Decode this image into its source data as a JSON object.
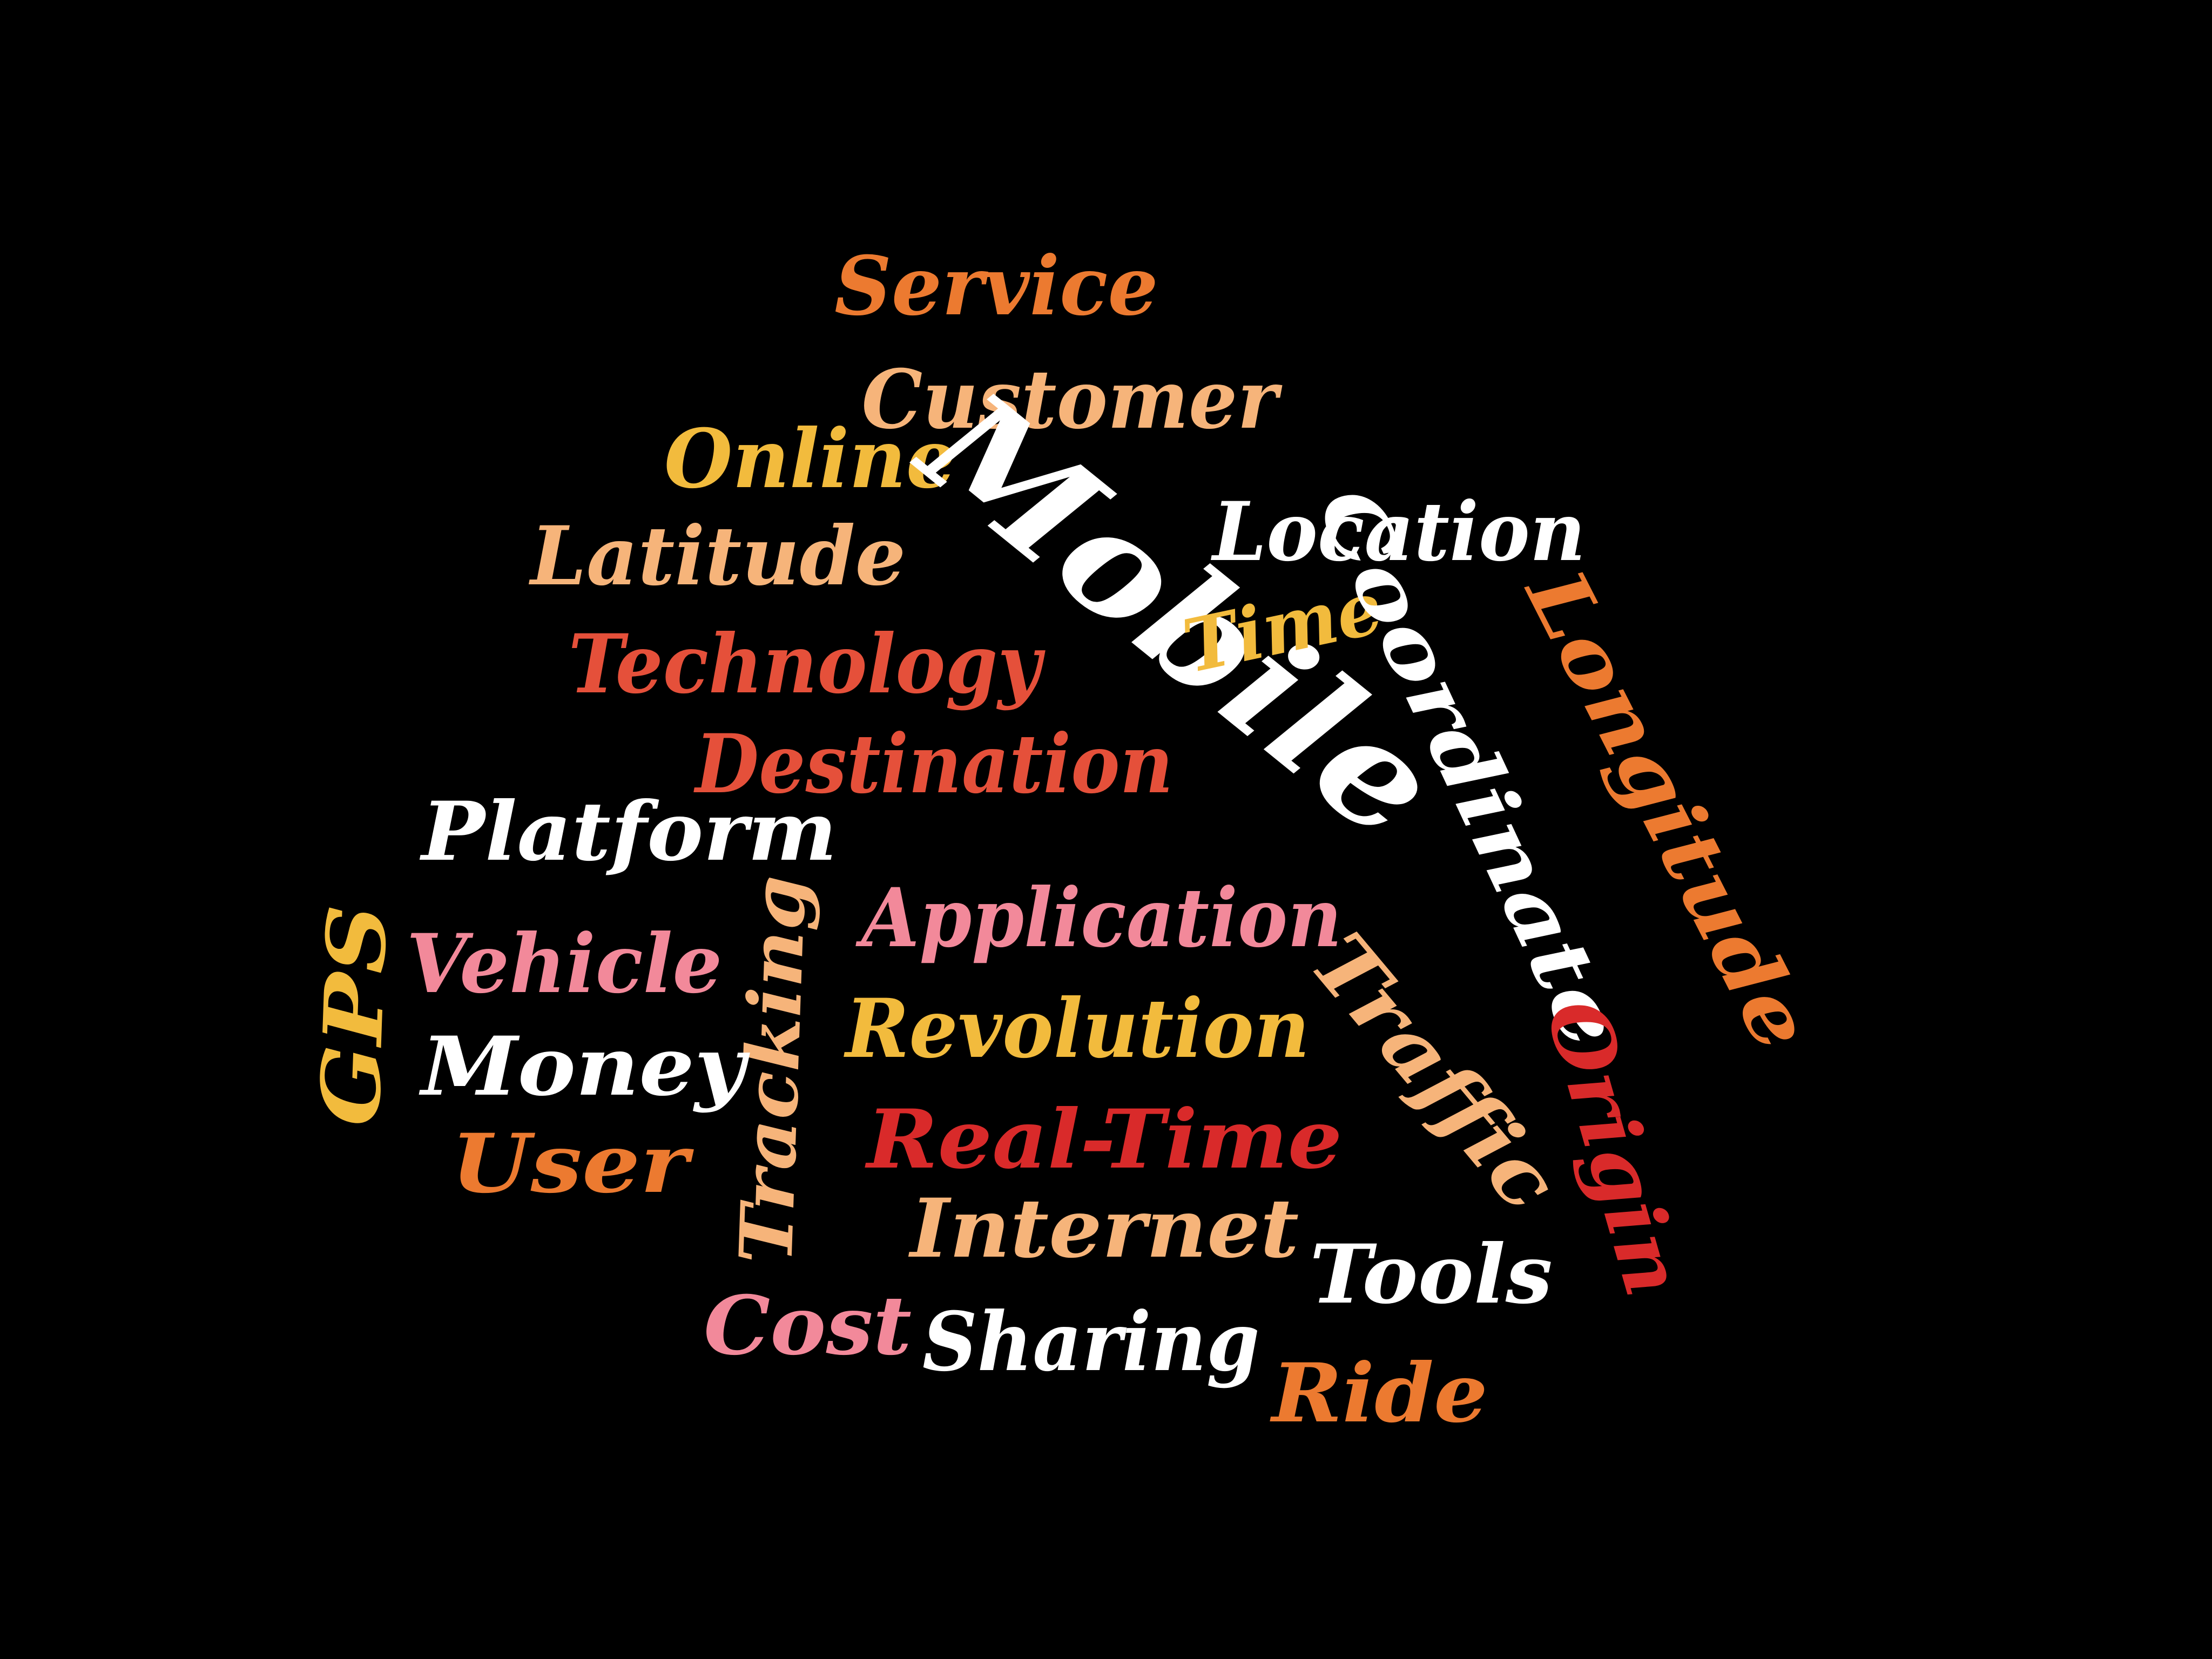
{
  "palette": {
    "background": "#000000",
    "white": "#ffffff",
    "orange": "#ec7a30",
    "peach": "#f6b47a",
    "yellow": "#f2bb3d",
    "red": "#e5503a",
    "pink": "#f2899a",
    "crimson": "#d92a2a"
  },
  "words": [
    {
      "key": "service",
      "text": "Service",
      "color": "orange"
    },
    {
      "key": "customer",
      "text": "Customer",
      "color": "peach"
    },
    {
      "key": "online",
      "text": "Online",
      "color": "yellow"
    },
    {
      "key": "mobile",
      "text": "Mobile",
      "color": "white"
    },
    {
      "key": "location",
      "text": "Location",
      "color": "white"
    },
    {
      "key": "latitude",
      "text": "Latitude",
      "color": "peach"
    },
    {
      "key": "time",
      "text": "Time",
      "color": "yellow"
    },
    {
      "key": "coordinate",
      "text": "Coordinate",
      "color": "white"
    },
    {
      "key": "longitude",
      "text": "Longitude",
      "color": "orange"
    },
    {
      "key": "technology",
      "text": "Technology",
      "color": "red"
    },
    {
      "key": "destination",
      "text": "Destination",
      "color": "red"
    },
    {
      "key": "platform",
      "text": "Platform",
      "color": "white"
    },
    {
      "key": "application",
      "text": "Application",
      "color": "pink"
    },
    {
      "key": "gps",
      "text": "GPS",
      "color": "yellow"
    },
    {
      "key": "vehicle",
      "text": "Vehicle",
      "color": "pink"
    },
    {
      "key": "tracking",
      "text": "Tracking",
      "color": "peach"
    },
    {
      "key": "revolution",
      "text": "Revolution",
      "color": "yellow"
    },
    {
      "key": "traffic",
      "text": "Traffic",
      "color": "peach"
    },
    {
      "key": "money",
      "text": "Money",
      "color": "white"
    },
    {
      "key": "origin",
      "text": "Origin",
      "color": "crimson"
    },
    {
      "key": "real-time",
      "text": "Real-Time",
      "color": "crimson"
    },
    {
      "key": "user",
      "text": "User",
      "color": "orange"
    },
    {
      "key": "internet",
      "text": "Internet",
      "color": "peach"
    },
    {
      "key": "tools",
      "text": "Tools",
      "color": "white"
    },
    {
      "key": "cost",
      "text": "Cost",
      "color": "pink"
    },
    {
      "key": "sharing",
      "text": "Sharing",
      "color": "white"
    },
    {
      "key": "ride",
      "text": "Ride",
      "color": "orange"
    }
  ]
}
